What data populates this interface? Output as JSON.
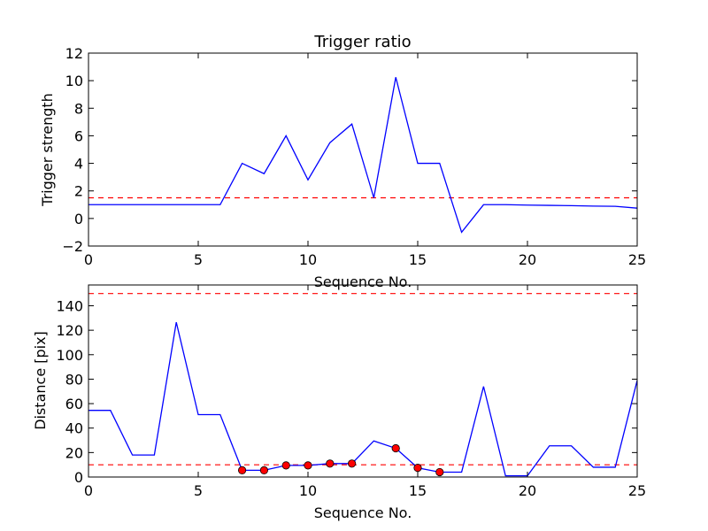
{
  "chart_data": [
    {
      "type": "line",
      "title": "Trigger ratio",
      "xlabel": "Sequence No.",
      "ylabel": "Trigger strength",
      "xlim": [
        0,
        25
      ],
      "ylim": [
        -2,
        12
      ],
      "xticks": [
        "0",
        "5",
        "10",
        "15",
        "20",
        "25"
      ],
      "yticks": [
        "−2",
        "0",
        "2",
        "4",
        "6",
        "8",
        "10",
        "12"
      ],
      "grid": false,
      "line_color": "#0000ff",
      "threshold_color": "#ff0000",
      "series": [
        {
          "x": [
            0,
            1,
            2,
            3,
            4,
            5,
            6,
            7,
            8,
            9,
            10,
            11,
            12,
            13,
            14,
            15,
            16,
            17,
            18,
            19,
            20,
            21,
            22,
            23,
            24,
            25
          ],
          "values": [
            1.0,
            1.0,
            1.0,
            1.0,
            1.0,
            1.0,
            1.0,
            4.0,
            3.25,
            6.0,
            2.8,
            5.5,
            6.85,
            1.5,
            10.25,
            4.0,
            4.0,
            -1.0,
            1.0,
            1.0,
            0.97,
            0.95,
            0.93,
            0.9,
            0.88,
            0.75
          ]
        }
      ],
      "threshold_lines": [
        1.5
      ]
    },
    {
      "type": "line",
      "title": "",
      "xlabel": "Sequence No.",
      "ylabel": "Distance [pix]",
      "xlim": [
        0,
        25
      ],
      "ylim": [
        0,
        157
      ],
      "xticks": [
        "0",
        "5",
        "10",
        "15",
        "20",
        "25"
      ],
      "yticks": [
        "0",
        "20",
        "40",
        "60",
        "80",
        "100",
        "120",
        "140"
      ],
      "grid": false,
      "line_color": "#0000ff",
      "marker_color": "#ff0000",
      "threshold_color": "#ff0000",
      "series": [
        {
          "x": [
            0,
            1,
            2,
            3,
            4,
            5,
            6,
            7,
            8,
            9,
            10,
            11,
            12,
            13,
            14,
            15,
            16,
            17,
            18,
            19,
            20,
            21,
            22,
            23,
            24,
            25
          ],
          "values": [
            54.5,
            54.5,
            18,
            18,
            126.5,
            51,
            51,
            5.5,
            5.5,
            9.5,
            9.5,
            11,
            11,
            29.5,
            23.5,
            7.5,
            4,
            4,
            74,
            1,
            1,
            25.5,
            25.5,
            8,
            8,
            79
          ]
        }
      ],
      "marked_points": {
        "x": [
          7,
          8,
          9,
          10,
          11,
          12,
          14,
          15,
          16
        ],
        "values": [
          5.5,
          5.5,
          9.5,
          9.5,
          11,
          11,
          23.5,
          7.5,
          4
        ]
      },
      "threshold_lines": [
        10,
        150
      ]
    }
  ]
}
